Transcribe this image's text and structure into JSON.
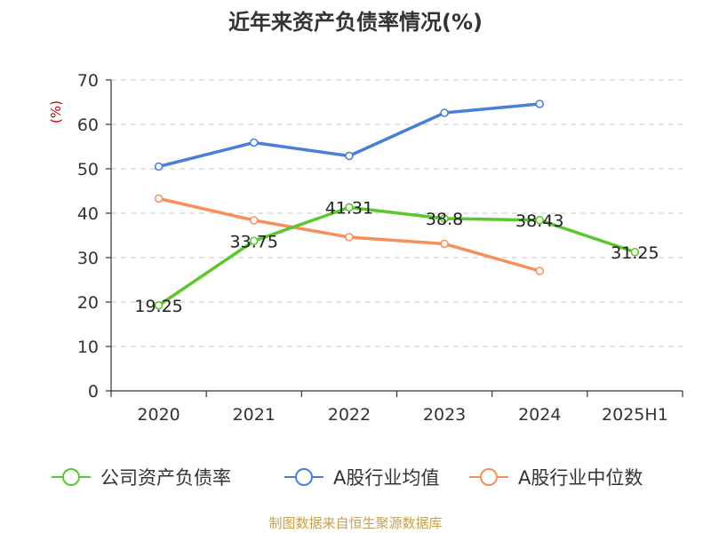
{
  "chart_data": {
    "type": "line",
    "title": "近年来资产负债率情况(%)",
    "ylabel": "(%)",
    "xlabel": "",
    "categories": [
      "2020",
      "2021",
      "2022",
      "2023",
      "2024",
      "2025H1"
    ],
    "ylim": [
      0,
      70
    ],
    "yticks": [
      0,
      10,
      20,
      30,
      40,
      50,
      60,
      70
    ],
    "grid": true,
    "legend_position": "bottom",
    "series": [
      {
        "name": "公司资产负债率",
        "color": "#5cc72d",
        "values": [
          19.25,
          33.75,
          41.31,
          38.8,
          38.43,
          31.25
        ],
        "labels": [
          "19.25",
          "33.75",
          "41.31",
          "38.8",
          "38.43",
          "31.25"
        ]
      },
      {
        "name": "A股行业均值",
        "color": "#4a7fd8",
        "values": [
          50.5,
          55.9,
          52.9,
          62.6,
          64.6,
          null
        ]
      },
      {
        "name": "A股行业中位数",
        "color": "#f5905b",
        "values": [
          43.3,
          38.4,
          34.6,
          33.1,
          27.0,
          null
        ]
      }
    ],
    "source": "制图数据来自恒生聚源数据库"
  }
}
